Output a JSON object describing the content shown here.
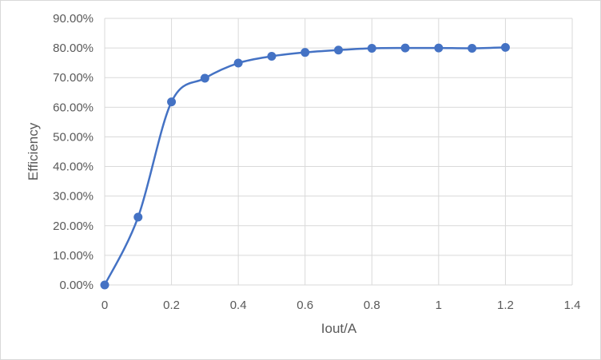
{
  "chart_data": {
    "type": "scatter",
    "title": "",
    "xlabel": "Iout/A",
    "ylabel": "Efficiency",
    "xlim": [
      0,
      1.4
    ],
    "ylim": [
      0,
      0.9
    ],
    "x_ticks": [
      "0",
      "0.2",
      "0.4",
      "0.6",
      "0.8",
      "1",
      "1.2",
      "1.4"
    ],
    "y_ticks": [
      "0.00%",
      "10.00%",
      "20.00%",
      "30.00%",
      "40.00%",
      "50.00%",
      "60.00%",
      "70.00%",
      "80.00%",
      "90.00%"
    ],
    "grid": true,
    "smooth_line": true,
    "series": [
      {
        "color": "#4472c4",
        "x": [
          0,
          0.1,
          0.2,
          0.3,
          0.4,
          0.5,
          0.6,
          0.7,
          0.8,
          0.9,
          1.0,
          1.1,
          1.2
        ],
        "y": [
          0.0,
          0.229,
          0.618,
          0.698,
          0.749,
          0.772,
          0.785,
          0.793,
          0.799,
          0.8,
          0.8,
          0.799,
          0.802
        ]
      }
    ]
  }
}
